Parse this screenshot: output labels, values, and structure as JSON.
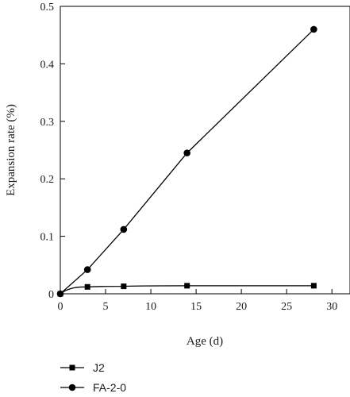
{
  "chart_data": {
    "type": "line",
    "title": "",
    "xlabel": "Age (d)",
    "ylabel": "Expansion rate (%)",
    "xlim": [
      0,
      32
    ],
    "ylim": [
      0,
      0.5
    ],
    "x_ticks": [
      0,
      5,
      10,
      15,
      20,
      25,
      30
    ],
    "x_tick_labels": [
      "0",
      "5",
      "10",
      "15",
      "20",
      "25",
      "30"
    ],
    "y_ticks": [
      0,
      0.1,
      0.2,
      0.3,
      0.4,
      0.5
    ],
    "y_tick_labels": [
      "0",
      "0.1",
      "0.2",
      "0.3",
      "0.4",
      "0.5"
    ],
    "grid": false,
    "legend_position": "bottom-left",
    "series": [
      {
        "name": "J2",
        "marker": "square",
        "color": "#000000",
        "x": [
          0,
          3,
          7,
          14,
          28
        ],
        "y": [
          0,
          0.012,
          0.013,
          0.014,
          0.014
        ]
      },
      {
        "name": "FA-2-0",
        "marker": "circle",
        "color": "#000000",
        "x": [
          0,
          3,
          7,
          14,
          28
        ],
        "y": [
          0,
          0.042,
          0.112,
          0.245,
          0.46
        ]
      }
    ]
  }
}
